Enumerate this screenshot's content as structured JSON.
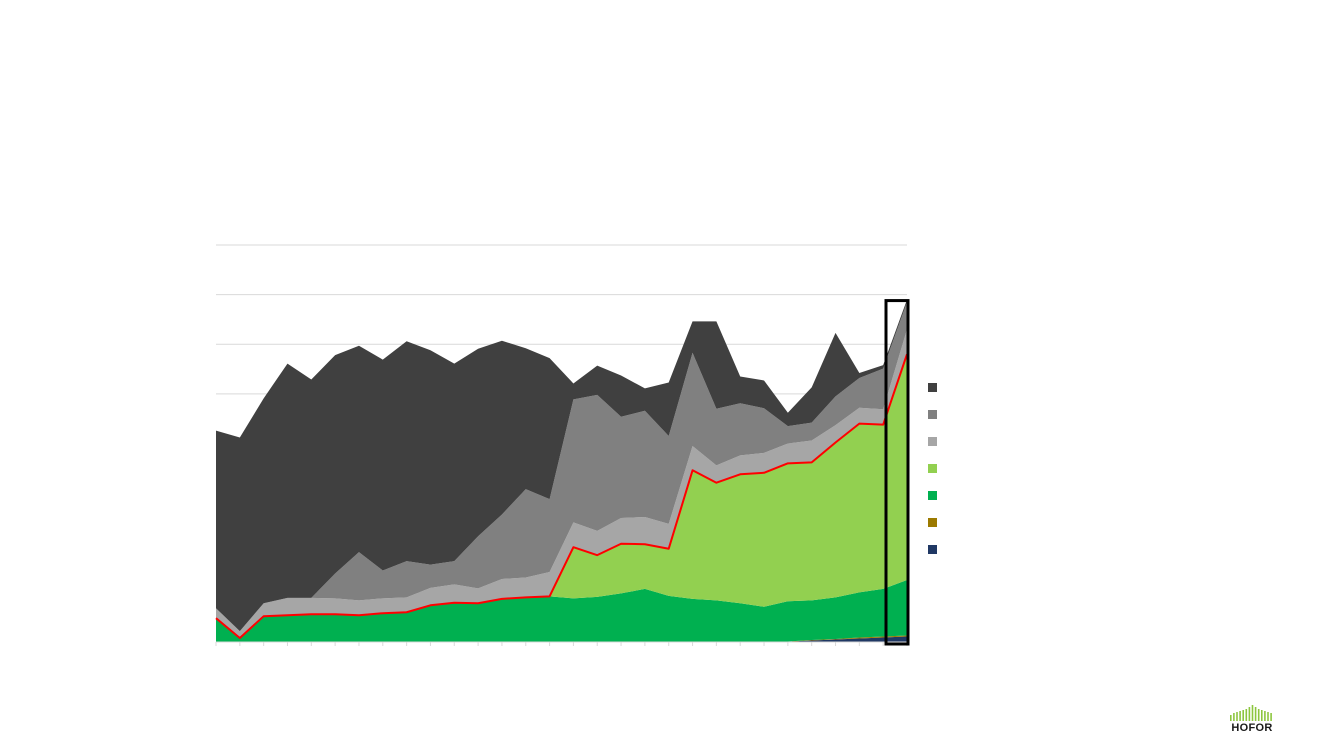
{
  "chart_data": {
    "type": "area",
    "stacked": true,
    "title": "",
    "xlabel": "",
    "ylabel": "",
    "ylim": [
      0,
      8
    ],
    "grid": true,
    "legend_position": "right",
    "series": [
      {
        "color": "#203864",
        "values": [
          0,
          0,
          0,
          0,
          0,
          0,
          0,
          0,
          0,
          0,
          0,
          0,
          0,
          0,
          0,
          0,
          0,
          0,
          0,
          0,
          0,
          0,
          0,
          0,
          0.01,
          0.03,
          0.05,
          0.07,
          0.09,
          0.11
        ]
      },
      {
        "color": "#9C7A00",
        "values": [
          0,
          0,
          0,
          0,
          0,
          0,
          0,
          0,
          0,
          0,
          0,
          0,
          0,
          0,
          0,
          0,
          0,
          0,
          0,
          0,
          0,
          0,
          0,
          0,
          0,
          0.01,
          0.01,
          0.02,
          0.02,
          0.02
        ]
      },
      {
        "color": "#00B050",
        "values": [
          0.48,
          0.08,
          0.52,
          0.54,
          0.56,
          0.56,
          0.54,
          0.58,
          0.6,
          0.74,
          0.79,
          0.78,
          0.87,
          0.9,
          0.92,
          0.88,
          0.91,
          0.98,
          1.07,
          0.93,
          0.87,
          0.84,
          0.78,
          0.71,
          0.81,
          0.8,
          0.84,
          0.91,
          0.96,
          1.12
        ]
      },
      {
        "color": "#92D050",
        "values": [
          0,
          0,
          0,
          0,
          0,
          0,
          0,
          0,
          0,
          0,
          0,
          0,
          0,
          0,
          0,
          1.03,
          0.84,
          1.0,
          0.9,
          0.95,
          2.59,
          2.37,
          2.6,
          2.7,
          2.78,
          2.78,
          3.12,
          3.4,
          3.31,
          4.55
        ]
      },
      {
        "color": "#A6A6A6",
        "values": [
          0.2,
          0.14,
          0.26,
          0.35,
          0.33,
          0.32,
          0.3,
          0.3,
          0.3,
          0.35,
          0.37,
          0.3,
          0.4,
          0.4,
          0.49,
          0.5,
          0.49,
          0.52,
          0.55,
          0.5,
          0.49,
          0.35,
          0.38,
          0.4,
          0.4,
          0.44,
          0.35,
          0.32,
          0.31,
          0.5
        ]
      },
      {
        "color": "#808080",
        "values": [
          0,
          0,
          0,
          0,
          0,
          0.5,
          0.97,
          0.56,
          0.73,
          0.47,
          0.47,
          1.05,
          1.3,
          1.78,
          1.47,
          2.48,
          2.74,
          2.04,
          2.14,
          1.77,
          1.88,
          1.14,
          1.05,
          0.9,
          0.35,
          0.36,
          0.58,
          0.6,
          0.82,
          0.55
        ]
      },
      {
        "color": "#404040",
        "values": [
          3.58,
          3.9,
          4.13,
          4.72,
          4.4,
          4.4,
          4.16,
          4.25,
          4.43,
          4.32,
          3.98,
          3.78,
          3.5,
          2.84,
          2.84,
          0.32,
          0.59,
          0.83,
          0.45,
          1.08,
          0.63,
          1.76,
          0.54,
          0.56,
          0.27,
          0.71,
          1.28,
          0.1,
          0.07,
          0.05
        ]
      }
    ]
  },
  "legend": [
    {
      "color": "#404040"
    },
    {
      "color": "#808080"
    },
    {
      "color": "#A6A6A6"
    },
    {
      "color": "#92D050"
    },
    {
      "color": "#00B050"
    },
    {
      "color": "#9C7A00"
    },
    {
      "color": "#203864"
    }
  ],
  "logo": {
    "text": "HOFOR"
  },
  "colors": {
    "grid": "#d9d9d9",
    "highlight_line": "#FF0000",
    "highlight_box": "#000000"
  }
}
